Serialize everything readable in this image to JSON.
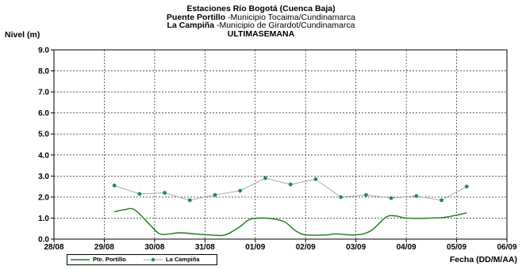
{
  "header": {
    "line1": "Estaciones Río Bogotá (Cuenca Baja)",
    "line2_bold": "Puente Portillo",
    "line2_rest": " -Municipio Tocaima/Cundinamarca",
    "line3_bold": "La Campiña",
    "line3_rest": " -Municipio de Girardot/Cundinamarca",
    "line4": "ULTIMASEMANA"
  },
  "chart_data": {
    "type": "line",
    "title": "Estaciones Río Bogotá (Cuenca Baja)",
    "ylabel": "Nivel (m)",
    "xlabel": "Fecha (DD/M/AA)",
    "ylim": [
      0,
      9
    ],
    "yticks": [
      "0.0",
      "1.0",
      "2.0",
      "3.0",
      "4.0",
      "5.0",
      "6.0",
      "7.0",
      "8.0",
      "9.0"
    ],
    "xlim_days": [
      0,
      9
    ],
    "xticks": [
      "28/08",
      "29/08",
      "30/08",
      "31/08",
      "01/09",
      "02/09",
      "03/09",
      "04/09",
      "05/09",
      "06/09"
    ],
    "grid": true,
    "legend_position": "bottom-left",
    "series": [
      {
        "name": "Pte. Portillo",
        "color": "#1a7a1a",
        "marker": false,
        "points": [
          [
            1.2,
            1.3
          ],
          [
            1.4,
            1.4
          ],
          [
            1.6,
            1.4
          ],
          [
            1.9,
            0.7
          ],
          [
            2.1,
            0.25
          ],
          [
            2.3,
            0.25
          ],
          [
            2.5,
            0.3
          ],
          [
            2.8,
            0.25
          ],
          [
            3.1,
            0.2
          ],
          [
            3.4,
            0.2
          ],
          [
            3.7,
            0.6
          ],
          [
            3.9,
            0.95
          ],
          [
            4.2,
            1.0
          ],
          [
            4.4,
            0.95
          ],
          [
            4.6,
            0.8
          ],
          [
            4.8,
            0.4
          ],
          [
            5.0,
            0.2
          ],
          [
            5.4,
            0.2
          ],
          [
            5.6,
            0.25
          ],
          [
            6.0,
            0.2
          ],
          [
            6.3,
            0.4
          ],
          [
            6.6,
            1.05
          ],
          [
            6.8,
            1.1
          ],
          [
            7.0,
            1.0
          ],
          [
            7.5,
            1.0
          ],
          [
            7.8,
            1.05
          ],
          [
            8.2,
            1.25
          ]
        ]
      },
      {
        "name": "La Campiña",
        "color": "#1a8a6a",
        "line_color": "#a0a0a0",
        "marker": true,
        "points": [
          [
            1.2,
            2.55
          ],
          [
            1.7,
            2.15
          ],
          [
            2.2,
            2.2
          ],
          [
            2.7,
            1.85
          ],
          [
            3.2,
            2.1
          ],
          [
            3.7,
            2.3
          ],
          [
            4.2,
            2.9
          ],
          [
            4.7,
            2.6
          ],
          [
            5.2,
            2.85
          ],
          [
            5.7,
            2.0
          ],
          [
            6.2,
            2.1
          ],
          [
            6.7,
            1.95
          ],
          [
            7.2,
            2.05
          ],
          [
            7.7,
            1.85
          ],
          [
            8.2,
            2.5
          ]
        ]
      }
    ]
  }
}
